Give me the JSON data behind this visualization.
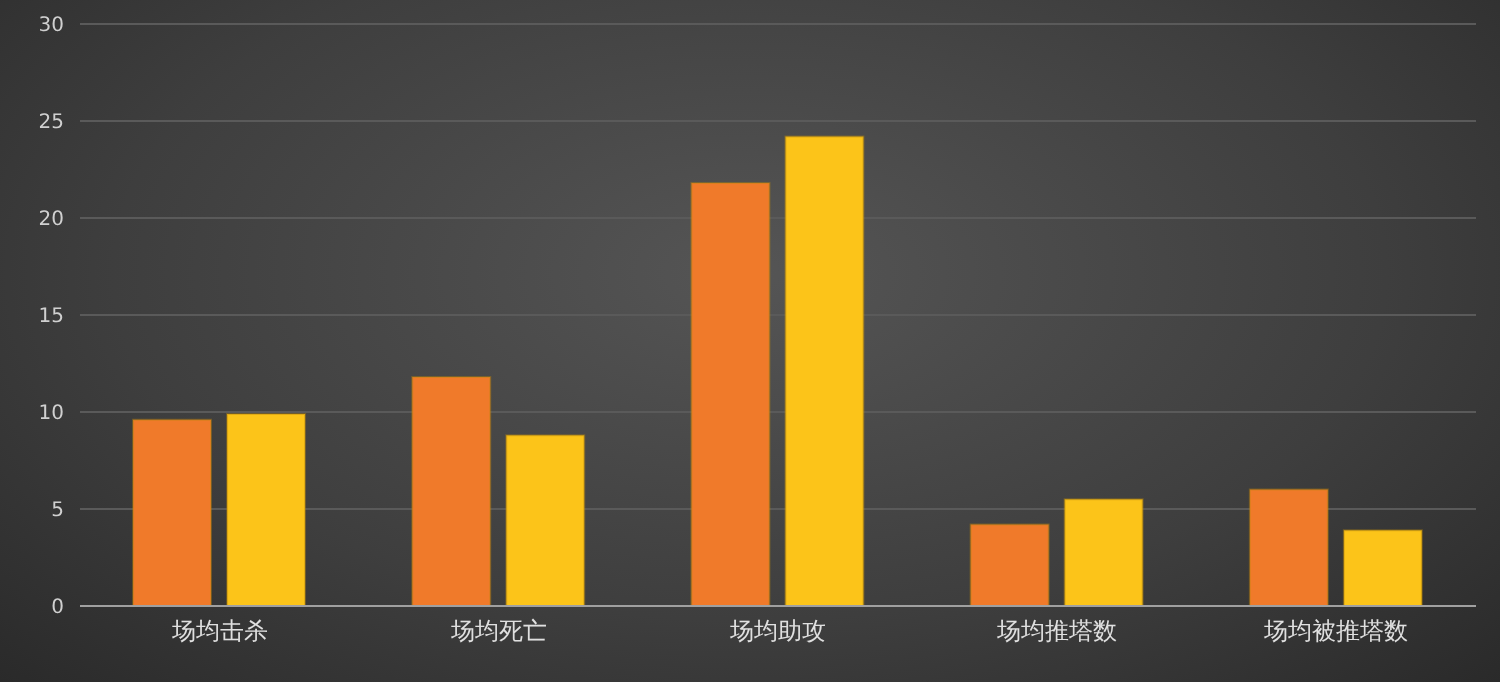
{
  "chart_data": {
    "type": "bar",
    "categories": [
      "场均击杀",
      "场均死亡",
      "场均助攻",
      "场均推塔数",
      "场均被推塔数"
    ],
    "series": [
      {
        "color": "#f07a2a",
        "values": [
          9.6,
          11.8,
          21.8,
          4.2,
          6.0
        ]
      },
      {
        "color": "#fcc419",
        "values": [
          9.9,
          8.8,
          24.2,
          5.5,
          3.9
        ]
      }
    ],
    "ylim": [
      0,
      30
    ],
    "yticks": [
      0,
      5,
      10,
      15,
      20,
      25,
      30
    ],
    "grid": "y"
  }
}
